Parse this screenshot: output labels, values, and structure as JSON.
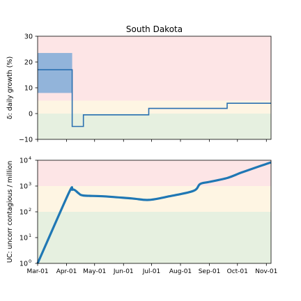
{
  "chart_data": [
    {
      "type": "line",
      "title": "South Dakota",
      "xlabel": "",
      "ylabel": "δ: daily growth (%)",
      "ylim": [
        -10,
        30
      ],
      "yticks": [
        "30",
        "20",
        "10",
        "0",
        "−10"
      ],
      "ytick_values": [
        30,
        20,
        10,
        0,
        -10
      ],
      "grid": false,
      "zones": [
        {
          "from": -10,
          "to": 0,
          "color": "#e6f0e0"
        },
        {
          "from": 0,
          "to": 5,
          "color": "#fef5e3"
        },
        {
          "from": 5,
          "to": 30,
          "color": "#fde5e6"
        }
      ],
      "band": {
        "x": [
          "2020-03-01",
          "2020-04-07"
        ],
        "y": [
          8,
          23.5
        ],
        "color": "#92b4da"
      },
      "series": [
        {
          "color": "#2a6fb0",
          "x": [
            "2020-03-01",
            "2020-04-07",
            "2020-04-07",
            "2020-04-19",
            "2020-04-19",
            "2020-06-28",
            "2020-06-28",
            "2020-09-20",
            "2020-09-20",
            "2020-11-06"
          ],
          "y": [
            17,
            17,
            -5,
            -5,
            -0.5,
            -0.5,
            2,
            2,
            4,
            4
          ]
        }
      ]
    },
    {
      "type": "line",
      "title": "",
      "xlabel": "",
      "ylabel": "UC: uncorr contagious / million",
      "yscale": "log",
      "ylim": [
        1,
        10000
      ],
      "yticks": [
        {
          "base": "10",
          "exp": "4"
        },
        {
          "base": "10",
          "exp": "3"
        },
        {
          "base": "10",
          "exp": "2"
        },
        {
          "base": "10",
          "exp": "1"
        },
        {
          "base": "10",
          "exp": "0"
        }
      ],
      "ytick_values": [
        10000,
        1000,
        100,
        10,
        1
      ],
      "xticks": [
        "Mar-01",
        "Apr-01",
        "May-01",
        "Jun-01",
        "Jul-01",
        "Aug-01",
        "Sep-01",
        "Oct-01",
        "Nov-01"
      ],
      "xtick_dates": [
        "2020-03-01",
        "2020-04-01",
        "2020-05-01",
        "2020-06-01",
        "2020-07-01",
        "2020-08-01",
        "2020-09-01",
        "2020-10-01",
        "2020-11-01"
      ],
      "xlim": [
        "2020-03-01",
        "2020-11-06"
      ],
      "grid": false,
      "zones": [
        {
          "from": 1,
          "to": 100,
          "color": "#e6f0e0"
        },
        {
          "from": 100,
          "to": 1000,
          "color": "#fef5e3"
        },
        {
          "from": 1000,
          "to": 10000,
          "color": "#fde5e6"
        }
      ],
      "series": [
        {
          "color": "#1f77b4",
          "x": [
            "2020-03-01",
            "2020-04-03",
            "2020-04-07",
            "2020-04-10",
            "2020-04-14",
            "2020-04-19",
            "2020-05-10",
            "2020-06-10",
            "2020-06-28",
            "2020-07-20",
            "2020-08-15",
            "2020-08-22",
            "2020-09-01",
            "2020-09-20",
            "2020-10-05",
            "2020-10-20",
            "2020-11-06"
          ],
          "y": [
            1,
            500,
            720,
            690,
            520,
            430,
            400,
            330,
            290,
            400,
            650,
            1200,
            1450,
            2050,
            3300,
            5100,
            8300
          ]
        }
      ]
    }
  ]
}
